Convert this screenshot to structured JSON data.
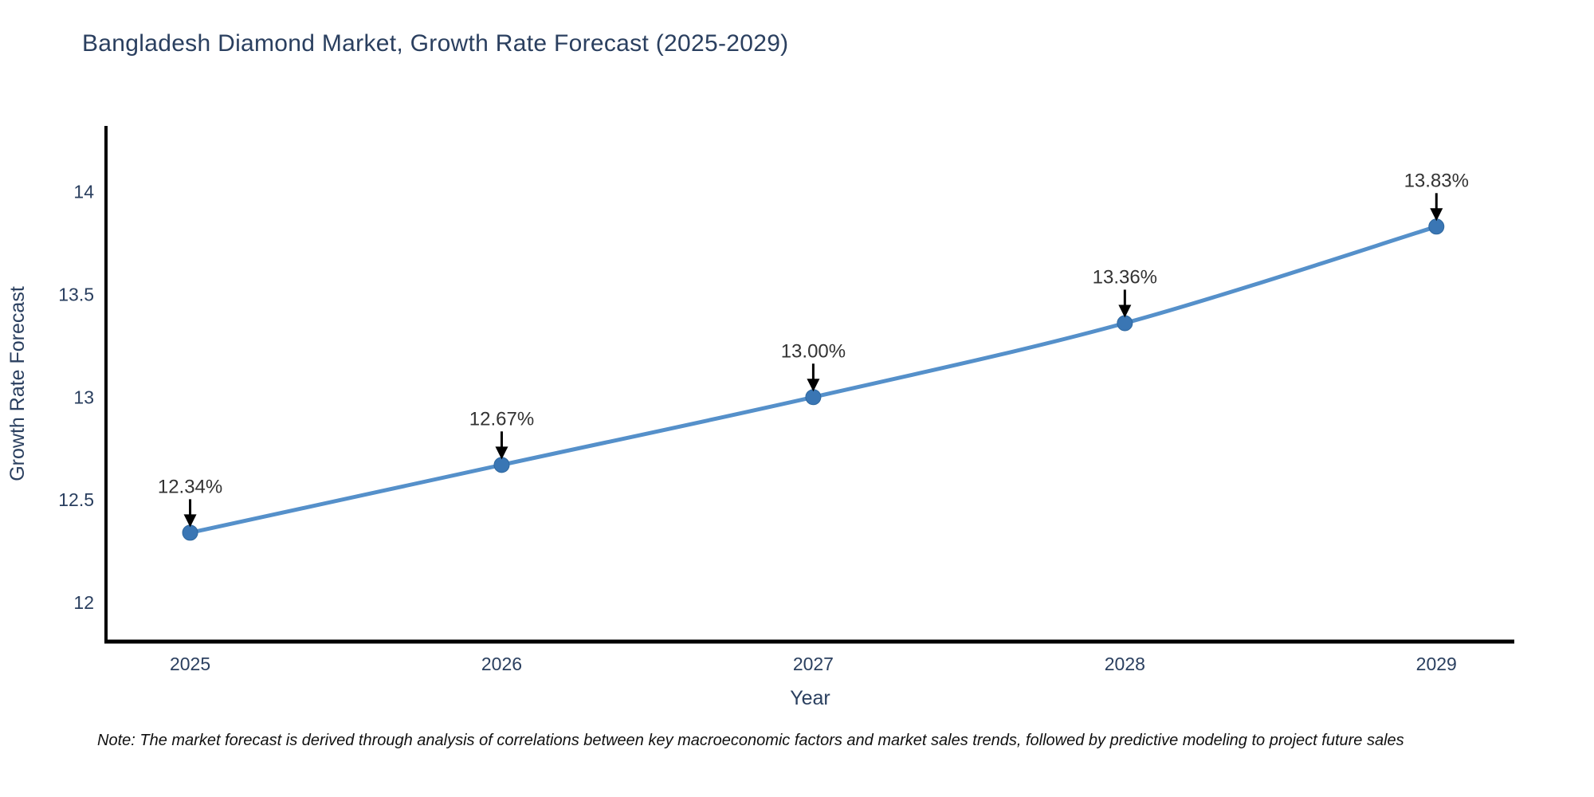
{
  "header": {
    "title": "Bangladesh Diamond Market, Growth Rate Forecast (2025-2029)"
  },
  "footer": {
    "note": "Note: The market forecast is derived through analysis of correlations between key macroeconomic factors and market sales trends, followed by predictive modeling to project future sales"
  },
  "chart_data": {
    "type": "line",
    "title": "Bangladesh Diamond Market, Growth Rate Forecast (2025-2029)",
    "xlabel": "Year",
    "ylabel": "Growth Rate Forecast",
    "x": [
      2025,
      2026,
      2027,
      2028,
      2029
    ],
    "values": [
      12.34,
      12.67,
      13.0,
      13.36,
      13.83
    ],
    "point_labels": [
      "12.34%",
      "12.67%",
      "13.00%",
      "13.36%",
      "13.83%"
    ],
    "series_name": "Growth Rate Forecast",
    "line_shape": "spline",
    "grid": false,
    "legend_position": "none",
    "xlim": [
      2024.73,
      2029.25
    ],
    "ylim": [
      11.81,
      14.32
    ],
    "xticks": {
      "values": [
        2025,
        2026,
        2027,
        2028,
        2029
      ],
      "labels": [
        "2025",
        "2026",
        "2027",
        "2028",
        "2029"
      ]
    },
    "yticks": {
      "values": [
        12,
        12.5,
        13,
        13.5,
        14
      ],
      "labels": [
        "12",
        "12.5",
        "13",
        "13.5",
        "14"
      ]
    },
    "colors": {
      "line": "#5590ca",
      "marker": "#3a76b4",
      "marker_edge": "#2f689f",
      "axis": "#000000",
      "tick_label": "#2a3f5f",
      "axis_title": "#2a3f5f",
      "annotation_text": "#333333",
      "arrow": "#000000",
      "title": "#2a3f5f",
      "background": "#ffffff"
    }
  }
}
